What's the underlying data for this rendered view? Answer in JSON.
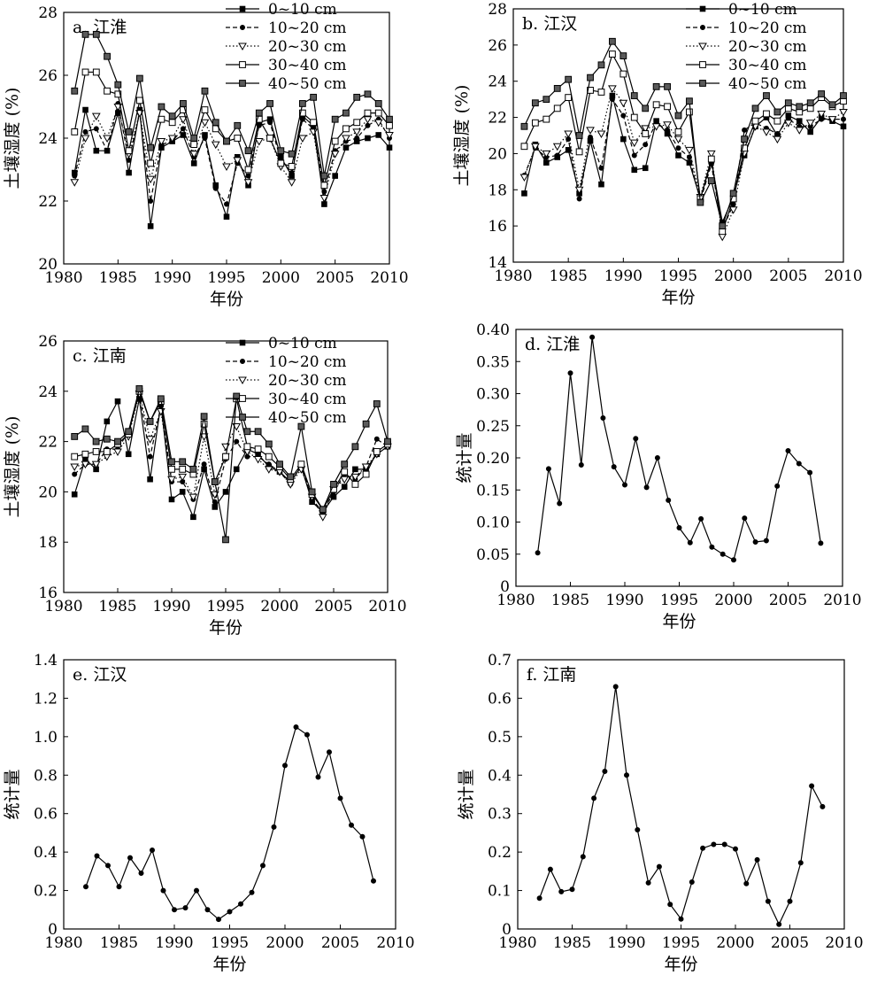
{
  "chart_data": [
    {
      "id": "a",
      "type": "line",
      "panel_label": "a. 江淮",
      "xlabel": "年份",
      "ylabel": "土壤湿度 (%)",
      "xlim": [
        1980,
        2010
      ],
      "ylim": [
        20,
        28
      ],
      "xticks": [
        1980,
        1985,
        1990,
        1995,
        2000,
        2005,
        2010
      ],
      "yticks": [
        20,
        22,
        24,
        26,
        28
      ],
      "legend": "top-right",
      "x": [
        1981,
        1982,
        1983,
        1984,
        1985,
        1986,
        1987,
        1988,
        1989,
        1990,
        1991,
        1992,
        1993,
        1994,
        1995,
        1996,
        1997,
        1998,
        1999,
        2000,
        2001,
        2002,
        2003,
        2004,
        2005,
        2006,
        2007,
        2008,
        2009,
        2010
      ],
      "series": [
        {
          "name": "0~10 cm",
          "marker": "filled-square",
          "dash": "solid",
          "values": [
            22.9,
            24.9,
            23.6,
            23.6,
            24.8,
            22.9,
            24.9,
            21.2,
            23.7,
            23.9,
            24.1,
            23.2,
            24.1,
            22.5,
            21.5,
            23.4,
            22.5,
            24.5,
            24.6,
            23.4,
            22.8,
            24.7,
            24.4,
            21.9,
            22.8,
            23.7,
            23.9,
            24.0,
            24.1,
            23.7
          ]
        },
        {
          "name": "10~20 cm",
          "marker": "filled-dot",
          "dash": "dashed",
          "values": [
            22.8,
            24.2,
            24.3,
            23.6,
            25.1,
            23.3,
            24.8,
            22.0,
            23.8,
            23.9,
            24.3,
            23.4,
            24.0,
            22.4,
            21.9,
            23.2,
            22.8,
            24.4,
            24.5,
            23.3,
            22.9,
            24.6,
            24.3,
            22.3,
            23.6,
            23.9,
            24.0,
            24.4,
            24.6,
            24.0
          ]
        },
        {
          "name": "20~30 cm",
          "marker": "open-triangle-down",
          "dash": "dotted",
          "values": [
            22.6,
            24.0,
            24.7,
            24.0,
            25.0,
            23.5,
            24.8,
            22.7,
            23.9,
            24.0,
            24.6,
            23.5,
            24.5,
            23.8,
            23.1,
            23.3,
            22.6,
            23.9,
            24.0,
            23.1,
            22.6,
            24.0,
            24.2,
            22.1,
            23.5,
            24.0,
            24.2,
            24.6,
            24.5,
            24.1
          ]
        },
        {
          "name": "30~40 cm",
          "marker": "open-square",
          "dash": "solid",
          "values": [
            24.2,
            26.1,
            26.1,
            25.5,
            25.4,
            23.6,
            25.2,
            23.2,
            24.6,
            24.5,
            24.9,
            23.8,
            24.9,
            24.3,
            23.9,
            24.0,
            23.0,
            24.6,
            24.0,
            23.2,
            23.1,
            24.8,
            24.5,
            22.5,
            23.9,
            24.3,
            24.5,
            24.8,
            24.8,
            24.4
          ]
        },
        {
          "name": "40~50 cm",
          "marker": "gray-square",
          "dash": "solid",
          "values": [
            25.5,
            27.3,
            27.3,
            26.6,
            25.7,
            24.2,
            25.9,
            23.7,
            25.0,
            24.7,
            25.1,
            24.0,
            25.5,
            24.5,
            23.9,
            24.4,
            23.6,
            24.8,
            25.1,
            23.6,
            23.5,
            25.1,
            25.3,
            22.8,
            24.6,
            24.8,
            25.3,
            25.4,
            25.1,
            24.6
          ]
        }
      ]
    },
    {
      "id": "b",
      "type": "line",
      "panel_label": "b. 江汉",
      "xlabel": "年份",
      "ylabel": "土壤湿度 (%)",
      "xlim": [
        1980,
        2010
      ],
      "ylim": [
        14,
        28
      ],
      "xticks": [
        1980,
        1985,
        1990,
        1995,
        2000,
        2005,
        2010
      ],
      "yticks": [
        14,
        16,
        18,
        20,
        22,
        24,
        26,
        28
      ],
      "legend": "top-right",
      "x": [
        1981,
        1982,
        1983,
        1984,
        1985,
        1986,
        1987,
        1988,
        1989,
        1990,
        1991,
        1992,
        1993,
        1994,
        1995,
        1996,
        1997,
        1998,
        1999,
        2000,
        2001,
        2002,
        2003,
        2004,
        2005,
        2006,
        2007,
        2008,
        2009,
        2010
      ],
      "series": [
        {
          "name": "0~10 cm",
          "marker": "filled-square",
          "dash": "solid",
          "values": [
            17.8,
            20.5,
            19.5,
            19.8,
            20.2,
            17.8,
            20.7,
            18.3,
            23.2,
            20.8,
            19.1,
            19.2,
            21.8,
            21.1,
            19.9,
            19.5,
            17.5,
            19.6,
            16.2,
            17.6,
            19.9,
            21.5,
            22.0,
            21.0,
            22.1,
            21.8,
            21.2,
            22.0,
            21.8,
            21.5
          ]
        },
        {
          "name": "10~20 cm",
          "marker": "filled-dot",
          "dash": "dashed",
          "values": [
            18.8,
            20.3,
            19.8,
            19.9,
            20.8,
            17.5,
            20.9,
            19.2,
            23.0,
            22.1,
            19.9,
            20.5,
            21.7,
            21.3,
            20.3,
            19.8,
            17.4,
            19.4,
            15.8,
            17.2,
            21.3,
            21.7,
            21.4,
            21.1,
            21.9,
            21.5,
            21.5,
            21.9,
            21.9,
            21.9
          ]
        },
        {
          "name": "20~30 cm",
          "marker": "open-triangle-down",
          "dash": "dotted",
          "values": [
            18.7,
            20.4,
            20.0,
            20.4,
            21.1,
            18.0,
            21.3,
            21.1,
            23.6,
            22.8,
            20.6,
            21.4,
            21.5,
            21.6,
            20.8,
            20.2,
            17.6,
            20.0,
            15.4,
            16.9,
            20.0,
            21.5,
            21.2,
            20.8,
            21.7,
            21.3,
            21.7,
            22.2,
            21.9,
            22.3
          ]
        },
        {
          "name": "30~40 cm",
          "marker": "open-square",
          "dash": "solid",
          "values": [
            20.4,
            21.7,
            21.9,
            22.5,
            23.1,
            20.1,
            23.5,
            23.4,
            25.5,
            24.4,
            22.0,
            21.1,
            22.7,
            22.6,
            21.2,
            22.3,
            17.5,
            19.7,
            15.7,
            17.5,
            20.3,
            21.8,
            22.2,
            21.8,
            22.5,
            22.3,
            22.5,
            23.1,
            22.6,
            22.9
          ]
        },
        {
          "name": "40~50 cm",
          "marker": "gray-square",
          "dash": "solid",
          "values": [
            21.5,
            22.8,
            23.0,
            23.6,
            24.1,
            21.0,
            24.2,
            24.9,
            26.2,
            25.4,
            23.2,
            22.5,
            23.7,
            23.7,
            22.1,
            22.9,
            17.3,
            18.5,
            16.0,
            17.8,
            20.8,
            22.5,
            23.2,
            22.3,
            22.8,
            22.6,
            22.8,
            23.3,
            22.7,
            23.2
          ]
        }
      ]
    },
    {
      "id": "c",
      "type": "line",
      "panel_label": "c. 江南",
      "xlabel": "年份",
      "ylabel": "土壤湿度 (%)",
      "xlim": [
        1980,
        2010
      ],
      "ylim": [
        16,
        26
      ],
      "xticks": [
        1980,
        1985,
        1990,
        1995,
        2000,
        2005,
        2010
      ],
      "yticks": [
        16,
        18,
        20,
        22,
        24,
        26
      ],
      "legend": "top-right",
      "x": [
        1981,
        1982,
        1983,
        1984,
        1985,
        1986,
        1987,
        1988,
        1989,
        1990,
        1991,
        1992,
        1993,
        1994,
        1995,
        1996,
        1997,
        1998,
        1999,
        2000,
        2001,
        2002,
        2003,
        2004,
        2005,
        2006,
        2007,
        2008,
        2009,
        2010
      ],
      "series": [
        {
          "name": "0~10 cm",
          "marker": "filled-square",
          "dash": "solid",
          "values": [
            19.9,
            21.3,
            20.9,
            22.8,
            23.6,
            21.5,
            23.7,
            20.5,
            23.5,
            19.7,
            20.0,
            19.0,
            20.9,
            19.4,
            20.0,
            20.9,
            21.7,
            21.5,
            21.0,
            20.8,
            20.4,
            21.0,
            19.6,
            19.2,
            19.8,
            20.2,
            20.9,
            20.9,
            21.5,
            21.8
          ]
        },
        {
          "name": "10~20 cm",
          "marker": "filled-dot",
          "dash": "dashed",
          "values": [
            20.7,
            21.1,
            21.1,
            21.7,
            21.7,
            22.4,
            23.9,
            21.4,
            23.4,
            20.4,
            20.4,
            19.7,
            21.1,
            19.6,
            21.3,
            22.0,
            21.4,
            21.4,
            21.1,
            20.8,
            20.3,
            21.1,
            19.7,
            19.2,
            20.0,
            20.7,
            20.5,
            21.0,
            22.1,
            21.8
          ]
        },
        {
          "name": "20~30 cm",
          "marker": "open-triangle-down",
          "dash": "dotted",
          "values": [
            21.0,
            21.1,
            21.1,
            21.4,
            21.6,
            22.2,
            23.9,
            22.1,
            23.2,
            20.5,
            20.6,
            19.8,
            22.2,
            19.9,
            21.8,
            22.6,
            21.6,
            21.3,
            20.9,
            20.8,
            20.3,
            20.9,
            19.8,
            19.0,
            20.1,
            20.5,
            20.6,
            21.0,
            21.5,
            21.8
          ]
        },
        {
          "name": "30~40 cm",
          "marker": "open-square",
          "dash": "solid",
          "values": [
            21.4,
            21.5,
            21.6,
            21.6,
            21.9,
            22.3,
            24.0,
            22.8,
            23.6,
            20.9,
            20.9,
            20.7,
            22.7,
            20.4,
            21.4,
            23.7,
            21.8,
            21.7,
            21.4,
            21.0,
            20.5,
            21.1,
            19.9,
            19.3,
            20.1,
            20.8,
            20.3,
            20.7,
            21.6,
            21.9
          ]
        },
        {
          "name": "40~50 cm",
          "marker": "gray-square",
          "dash": "solid",
          "values": [
            22.2,
            22.5,
            22.0,
            22.1,
            22.0,
            22.4,
            24.1,
            22.8,
            23.7,
            21.2,
            21.2,
            20.9,
            23.0,
            20.4,
            18.1,
            23.8,
            22.4,
            22.4,
            21.9,
            21.1,
            20.6,
            22.6,
            20.0,
            19.3,
            20.3,
            21.1,
            21.8,
            22.7,
            23.5,
            22.0
          ]
        }
      ]
    },
    {
      "id": "d",
      "type": "line",
      "panel_label": "d. 江淮",
      "xlabel": "年份",
      "ylabel": "统计量",
      "xlim": [
        1980,
        2010
      ],
      "ylim": [
        0,
        0.4
      ],
      "xticks": [
        1980,
        1985,
        1990,
        1995,
        2000,
        2005,
        2010
      ],
      "yticks": [
        "0",
        "0.05",
        "0.10",
        "0.15",
        "0.20",
        "0.25",
        "0.30",
        "0.35",
        "0.40"
      ],
      "x": [
        1982,
        1983,
        1984,
        1985,
        1986,
        1987,
        1988,
        1989,
        1990,
        1991,
        1992,
        1993,
        1994,
        1995,
        1996,
        1997,
        1998,
        1999,
        2000,
        2001,
        2002,
        2003,
        2004,
        2005,
        2006,
        2007,
        2008
      ],
      "values": [
        0.052,
        0.183,
        0.129,
        0.332,
        0.189,
        0.388,
        0.262,
        0.186,
        0.158,
        0.23,
        0.154,
        0.2,
        0.134,
        0.091,
        0.068,
        0.105,
        0.061,
        0.05,
        0.041,
        0.106,
        0.069,
        0.071,
        0.156,
        0.211,
        0.191,
        0.177,
        0.067
      ]
    },
    {
      "id": "e",
      "type": "line",
      "panel_label": "e. 江汉",
      "xlabel": "年份",
      "ylabel": "统计量",
      "xlim": [
        1980,
        2010
      ],
      "ylim": [
        0,
        1.4
      ],
      "xticks": [
        1980,
        1985,
        1990,
        1995,
        2000,
        2005,
        2010
      ],
      "yticks": [
        "0",
        "0.2",
        "0.4",
        "0.6",
        "0.8",
        "1.0",
        "1.2",
        "1.4"
      ],
      "x": [
        1982,
        1983,
        1984,
        1985,
        1986,
        1987,
        1988,
        1989,
        1990,
        1991,
        1992,
        1993,
        1994,
        1995,
        1996,
        1997,
        1998,
        1999,
        2000,
        2001,
        2002,
        2003,
        2004,
        2005,
        2006,
        2007,
        2008
      ],
      "values": [
        0.22,
        0.38,
        0.33,
        0.22,
        0.37,
        0.29,
        0.41,
        0.2,
        0.1,
        0.11,
        0.2,
        0.1,
        0.05,
        0.09,
        0.13,
        0.19,
        0.33,
        0.53,
        0.85,
        1.05,
        1.01,
        0.79,
        0.92,
        0.68,
        0.54,
        0.48,
        0.25
      ]
    },
    {
      "id": "f",
      "type": "line",
      "panel_label": "f. 江南",
      "xlabel": "年份",
      "ylabel": "统计量",
      "xlim": [
        1980,
        2010
      ],
      "ylim": [
        0,
        0.7
      ],
      "xticks": [
        1980,
        1985,
        1990,
        1995,
        2000,
        2005,
        2010
      ],
      "yticks": [
        "0",
        "0.1",
        "0.2",
        "0.3",
        "0.4",
        "0.5",
        "0.6",
        "0.7"
      ],
      "x": [
        1982,
        1983,
        1984,
        1985,
        1986,
        1987,
        1988,
        1989,
        1990,
        1991,
        1992,
        1993,
        1994,
        1995,
        1996,
        1997,
        1998,
        1999,
        2000,
        2001,
        2002,
        2003,
        2004,
        2005,
        2006,
        2007,
        2008
      ],
      "values": [
        0.08,
        0.155,
        0.097,
        0.103,
        0.188,
        0.34,
        0.41,
        0.63,
        0.4,
        0.258,
        0.12,
        0.162,
        0.064,
        0.026,
        0.122,
        0.21,
        0.22,
        0.22,
        0.208,
        0.118,
        0.18,
        0.072,
        0.012,
        0.072,
        0.172,
        0.372,
        0.318
      ]
    }
  ]
}
